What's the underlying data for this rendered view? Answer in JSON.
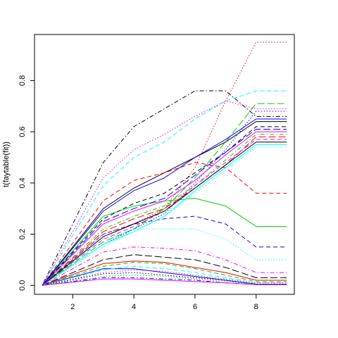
{
  "chart_data": {
    "type": "line",
    "title": "",
    "xlabel": "",
    "ylabel": "t(faytable(fit))",
    "xlim": [
      0.75,
      9.25
    ],
    "ylim": [
      -0.035,
      0.98
    ],
    "grid": false,
    "legend": "none",
    "x": [
      1,
      3,
      4,
      5,
      6,
      7,
      8,
      9
    ],
    "x_ticks": [
      2,
      4,
      6,
      8
    ],
    "y_ticks": [
      0.0,
      0.2,
      0.4,
      0.6,
      0.8
    ],
    "x_tick_labels": [
      "2",
      "4",
      "6",
      "8"
    ],
    "y_tick_labels": [
      "0.0",
      "0.2",
      "0.4",
      "0.6",
      "0.8"
    ],
    "series": [
      {
        "color": "#000000",
        "dash": "solid",
        "values": [
          0,
          0.3,
          0.38,
          0.44,
          0.5,
          0.56,
          0.64,
          0.64
        ]
      },
      {
        "color": "#ff0000",
        "dash": "dashed",
        "values": [
          0,
          0.33,
          0.41,
          0.44,
          0.48,
          0.46,
          0.36,
          0.36
        ]
      },
      {
        "color": "#00cd00",
        "dash": "solid",
        "values": [
          0,
          0.27,
          0.31,
          0.33,
          0.34,
          0.31,
          0.23,
          0.23
        ]
      },
      {
        "color": "#0000ff",
        "dash": "dashed",
        "values": [
          0,
          0.2,
          0.24,
          0.26,
          0.27,
          0.24,
          0.15,
          0.15
        ]
      },
      {
        "color": "#00ffff",
        "dash": "dotted",
        "values": [
          0,
          0.18,
          0.22,
          0.22,
          0.22,
          0.18,
          0.1,
          0.1
        ]
      },
      {
        "color": "#ff00ff",
        "dash": "dashdot",
        "values": [
          0,
          0.13,
          0.15,
          0.145,
          0.135,
          0.1,
          0.05,
          0.05
        ]
      },
      {
        "color": "#000000",
        "dash": "longdash",
        "values": [
          0,
          0.1,
          0.12,
          0.11,
          0.1,
          0.07,
          0.03,
          0.03
        ]
      },
      {
        "color": "#ff0000",
        "dash": "solid",
        "values": [
          0,
          0.085,
          0.095,
          0.09,
          0.07,
          0.05,
          0.02,
          0.02
        ]
      },
      {
        "color": "#00cd00",
        "dash": "dashed",
        "values": [
          0,
          0.075,
          0.09,
          0.085,
          0.065,
          0.04,
          0.015,
          0.015
        ]
      },
      {
        "color": "#0000ff",
        "dash": "solid",
        "values": [
          0,
          0.065,
          0.065,
          0.05,
          0.035,
          0.02,
          0.005,
          0.005
        ]
      },
      {
        "color": "#00ffff",
        "dash": "dashed",
        "values": [
          0,
          0.06,
          0.075,
          0.065,
          0.05,
          0.03,
          0.01,
          0.01
        ]
      },
      {
        "color": "#ff00ff",
        "dash": "dotted",
        "values": [
          0,
          0.05,
          0.06,
          0.055,
          0.04,
          0.025,
          0.01,
          0.01
        ]
      },
      {
        "color": "#000000",
        "dash": "dotted",
        "values": [
          0,
          0.045,
          0.05,
          0.04,
          0.03,
          0.02,
          0.005,
          0.005
        ]
      },
      {
        "color": "#00cd00",
        "dash": "dotted",
        "values": [
          0,
          0.035,
          0.04,
          0.035,
          0.025,
          0.015,
          0.005,
          0.005
        ]
      },
      {
        "color": "#0000ff",
        "dash": "dashdot",
        "values": [
          0,
          0.03,
          0.03,
          0.025,
          0.02,
          0.01,
          0.003,
          0.003
        ]
      },
      {
        "color": "#ff00ff",
        "dash": "solid",
        "values": [
          0,
          0.025,
          0.025,
          0.02,
          0.015,
          0.01,
          0.003,
          0.003
        ]
      },
      {
        "color": "#000000",
        "dash": "dashdot",
        "values": [
          0,
          0.48,
          0.62,
          0.69,
          0.76,
          0.76,
          0.66,
          0.66
        ]
      },
      {
        "color": "#ff0000",
        "dash": "dotted",
        "values": [
          0,
          0.2,
          0.24,
          0.3,
          0.46,
          0.72,
          0.95,
          0.95
        ]
      },
      {
        "color": "#00cd00",
        "dash": "longdash",
        "values": [
          0,
          0.17,
          0.22,
          0.3,
          0.42,
          0.56,
          0.71,
          0.71
        ]
      },
      {
        "color": "#0000ff",
        "dash": "dotted",
        "values": [
          0,
          0.16,
          0.22,
          0.28,
          0.4,
          0.53,
          0.68,
          0.68
        ]
      },
      {
        "color": "#00ffff",
        "dash": "dashed",
        "values": [
          0,
          0.39,
          0.5,
          0.56,
          0.65,
          0.72,
          0.76,
          0.76
        ]
      },
      {
        "color": "#ff00ff",
        "dash": "dotted",
        "values": [
          0,
          0.42,
          0.53,
          0.59,
          0.66,
          0.72,
          0.69,
          0.69
        ]
      },
      {
        "color": "#000000",
        "dash": "dashed",
        "values": [
          0,
          0.26,
          0.32,
          0.36,
          0.44,
          0.52,
          0.62,
          0.62
        ]
      },
      {
        "color": "#ff0000",
        "dash": "longdash",
        "values": [
          0,
          0.21,
          0.26,
          0.3,
          0.38,
          0.47,
          0.58,
          0.58
        ]
      },
      {
        "color": "#00cd00",
        "dash": "dashdot",
        "values": [
          0,
          0.22,
          0.27,
          0.31,
          0.39,
          0.49,
          0.59,
          0.59
        ]
      },
      {
        "color": "#0000ff",
        "dash": "solid",
        "values": [
          0,
          0.29,
          0.37,
          0.42,
          0.5,
          0.57,
          0.65,
          0.65
        ]
      },
      {
        "color": "#00ffff",
        "dash": "solid",
        "values": [
          0,
          0.16,
          0.21,
          0.27,
          0.37,
          0.46,
          0.55,
          0.55
        ]
      },
      {
        "color": "#ff00ff",
        "dash": "dashed",
        "values": [
          0,
          0.18,
          0.23,
          0.29,
          0.39,
          0.48,
          0.57,
          0.57
        ]
      },
      {
        "color": "#000000",
        "dash": "solid",
        "values": [
          0,
          0.19,
          0.24,
          0.29,
          0.38,
          0.47,
          0.56,
          0.56
        ]
      },
      {
        "color": "#00ffff",
        "dash": "dotted",
        "values": [
          0,
          0.15,
          0.21,
          0.27,
          0.36,
          0.45,
          0.54,
          0.54
        ]
      },
      {
        "color": "#ff00ff",
        "dash": "solid",
        "values": [
          0,
          0.24,
          0.29,
          0.33,
          0.41,
          0.51,
          0.6,
          0.6
        ]
      },
      {
        "color": "#0000ff",
        "dash": "longdash",
        "values": [
          0,
          0.25,
          0.3,
          0.34,
          0.43,
          0.52,
          0.61,
          0.61
        ]
      }
    ]
  }
}
